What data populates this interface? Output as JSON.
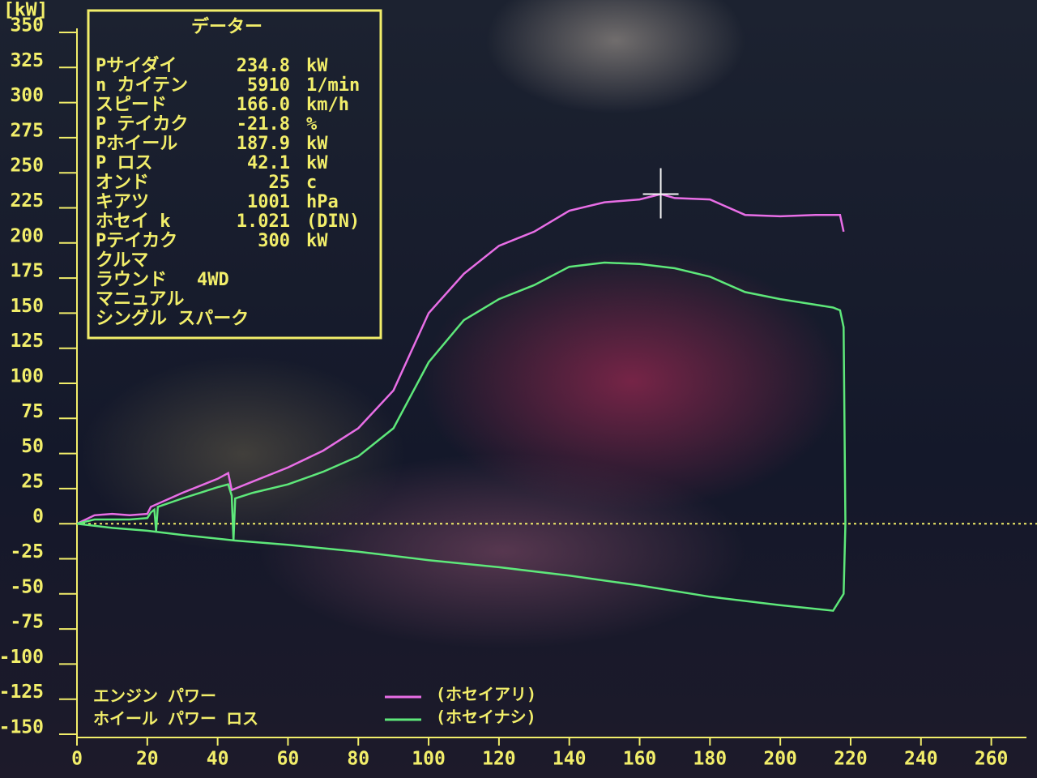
{
  "chart_data": {
    "type": "line",
    "y_label": "[kW]",
    "ylim": [
      -150,
      350
    ],
    "yticks": [
      -150,
      -125,
      -100,
      -75,
      -50,
      -25,
      0,
      25,
      50,
      75,
      100,
      125,
      150,
      175,
      200,
      225,
      250,
      275,
      300,
      325,
      350
    ],
    "xlim": [
      0,
      270
    ],
    "xticks": [
      0,
      20,
      40,
      60,
      80,
      100,
      120,
      140,
      160,
      180,
      200,
      220,
      240,
      260
    ],
    "series": [
      {
        "name": "(ホセイアリ)",
        "color": "#e86ee6",
        "x": [
          0,
          5,
          10,
          15,
          20,
          21,
          30,
          40,
          43,
          44,
          50,
          60,
          70,
          80,
          90,
          100,
          110,
          120,
          130,
          140,
          150,
          160,
          166,
          170,
          180,
          190,
          200,
          210,
          217,
          218
        ],
        "values": [
          0,
          6,
          7,
          6,
          7,
          12,
          22,
          32,
          36,
          24,
          30,
          40,
          52,
          68,
          95,
          150,
          178,
          198,
          208,
          223,
          229,
          231,
          234.8,
          232,
          231,
          220,
          219,
          220,
          220,
          208
        ]
      },
      {
        "name": "(ホセイナシ)",
        "color": "#5ee87a",
        "x": [
          0,
          5,
          10,
          15,
          20,
          21,
          22,
          22.5,
          23,
          30,
          40,
          43,
          44,
          44.5,
          45,
          50,
          60,
          70,
          80,
          90,
          100,
          110,
          120,
          130,
          140,
          150,
          160,
          170,
          180,
          190,
          200,
          210,
          215,
          217,
          218,
          218.5,
          218,
          215,
          200,
          180,
          160,
          140,
          120,
          100,
          80,
          60,
          45,
          30,
          20,
          10,
          0
        ],
        "values": [
          0,
          3,
          3,
          3,
          4,
          8,
          10,
          -5,
          12,
          18,
          26,
          28,
          20,
          -12,
          18,
          22,
          28,
          37,
          48,
          68,
          115,
          145,
          160,
          170,
          183,
          186,
          185,
          182,
          176,
          165,
          160,
          156,
          154,
          152,
          140,
          0,
          -50,
          -62,
          -58,
          -52,
          -44,
          -37,
          -31,
          -26,
          -20,
          -15,
          -12,
          -8,
          -5,
          -3,
          0
        ]
      }
    ],
    "curve_labels": [
      "エンジン パワー",
      "ホイール パワー ロス"
    ],
    "data_box": {
      "title": "データー",
      "rows": [
        {
          "label": "Pサイダイ",
          "value": "234.8",
          "unit": "kW"
        },
        {
          "label": "n カイテン",
          "value": "5910",
          "unit": "1/min"
        },
        {
          "label": "スピード",
          "value": "166.0",
          "unit": "km/h"
        },
        {
          "label": "P テイカク",
          "value": "-21.8",
          "unit": "%"
        },
        {
          "label": "Pホイール",
          "value": "187.9",
          "unit": "kW"
        },
        {
          "label": "P ロス",
          "value": "42.1",
          "unit": "kW"
        },
        {
          "label": "オンド",
          "value": "25",
          "unit": "c"
        },
        {
          "label": "キアツ",
          "value": "1001",
          "unit": "hPa"
        },
        {
          "label": "ホセイ k",
          "value": "1.021",
          "unit": "(DIN)"
        },
        {
          "label": "Pテイカク",
          "value": "300",
          "unit": "kW"
        }
      ],
      "notes": [
        {
          "label": "クルマ"
        },
        {
          "label": "ラウンド",
          "value": "4WD"
        },
        {
          "label": "マニュアル"
        },
        {
          "label": "シングル スパーク"
        }
      ]
    }
  }
}
